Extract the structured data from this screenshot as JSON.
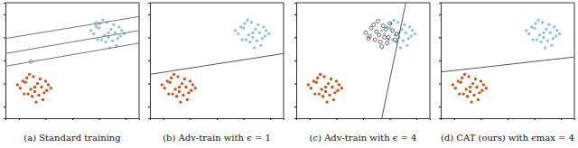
{
  "chart_data": [
    {
      "type": "scatter",
      "title": "(a) Standard training",
      "xlim": [
        -5,
        5
      ],
      "ylim": [
        -5,
        5
      ],
      "xticks": [
        -4,
        -2,
        0,
        2,
        4
      ],
      "yticks": [
        -4,
        -2,
        0,
        2,
        4
      ],
      "tick_labels": false,
      "series": [
        {
          "type": "scatter",
          "color": "#c4581f",
          "marker": "circle",
          "x": [
            -2.8,
            -3.5,
            -2.1,
            -3.0,
            -2.4,
            -3.9,
            -1.8,
            -2.9,
            -3.3,
            -2.2,
            -2.6,
            -3.7,
            -1.9,
            -3.1,
            -2.5,
            -3.4,
            -2.0,
            -2.7,
            -3.6,
            -2.3,
            -3.2,
            -1.6,
            -4.1,
            -2.8
          ],
          "values": [
            -2.3,
            -1.9,
            -2.8,
            -3.1,
            -1.6,
            -2.4,
            -2.1,
            -1.4,
            -2.9,
            -3.4,
            -2.0,
            -1.8,
            -2.6,
            -2.5,
            -3.0,
            -1.5,
            -1.8,
            -3.6,
            -2.9,
            -2.3,
            -1.2,
            -2.4,
            -2.1,
            -2.7
          ]
        },
        {
          "type": "scatter",
          "color": "#8ec3e6",
          "marker": "circle",
          "x": [
            2.7,
            2.0,
            3.4,
            2.5,
            3.1,
            1.6,
            3.7,
            2.6,
            2.2,
            3.3,
            2.9,
            1.8,
            3.6,
            2.4,
            3.0,
            2.1,
            3.5,
            2.8,
            1.9,
            3.2,
            2.3,
            3.9,
            1.4,
            2.7
          ],
          "values": [
            2.4,
            2.8,
            1.9,
            1.6,
            3.1,
            2.3,
            2.6,
            3.3,
            1.8,
            1.3,
            2.7,
            2.9,
            2.1,
            2.2,
            1.7,
            3.2,
            2.9,
            1.1,
            1.8,
            2.4,
            3.5,
            2.3,
            2.6,
            2.0
          ]
        },
        {
          "type": "scatter",
          "color": "#2e7d32",
          "marker": "circle-open",
          "x": [
            -3.1,
            1.8
          ],
          "values": [
            -0.1,
            3.2
          ]
        },
        {
          "type": "line",
          "color": "#666666",
          "line_style": "solid",
          "x": [
            -5,
            5
          ],
          "values": [
            1.9,
            3.8
          ]
        },
        {
          "type": "line",
          "color": "#666666",
          "line_style": "solid",
          "x": [
            -5,
            5
          ],
          "values": [
            0.6,
            2.6
          ]
        },
        {
          "type": "line",
          "color": "#666666",
          "line_style": "solid",
          "x": [
            -5,
            5
          ],
          "values": [
            -0.5,
            1.5
          ]
        }
      ]
    },
    {
      "type": "scatter",
      "title": "(b) Adv-train with ϵ = 1",
      "xlim": [
        -5,
        5
      ],
      "ylim": [
        -5,
        5
      ],
      "xticks": [
        -4,
        -2,
        0,
        2,
        4
      ],
      "yticks": [
        -4,
        -2,
        0,
        2,
        4
      ],
      "tick_labels": false,
      "series": [
        {
          "type": "scatter",
          "color": "#c4581f",
          "marker": "circle",
          "x": [
            -2.8,
            -3.5,
            -2.1,
            -3.0,
            -2.4,
            -3.9,
            -1.8,
            -2.9,
            -3.3,
            -2.2,
            -2.6,
            -3.7,
            -1.9,
            -3.1,
            -2.5,
            -3.4,
            -2.0,
            -2.7,
            -3.6,
            -2.3,
            -3.2,
            -1.6,
            -4.1,
            -2.8
          ],
          "values": [
            -2.3,
            -1.9,
            -2.8,
            -3.1,
            -1.6,
            -2.4,
            -2.1,
            -1.4,
            -2.9,
            -3.4,
            -2.0,
            -1.8,
            -2.6,
            -2.5,
            -3.0,
            -1.5,
            -1.8,
            -3.6,
            -2.9,
            -2.3,
            -1.2,
            -2.4,
            -2.1,
            -2.7
          ]
        },
        {
          "type": "scatter",
          "color": "#8ec3e6",
          "marker": "circle",
          "x": [
            2.7,
            2.0,
            3.4,
            2.5,
            3.1,
            1.6,
            3.7,
            2.6,
            2.2,
            3.3,
            2.9,
            1.8,
            3.6,
            2.4,
            3.0,
            2.1,
            3.5,
            2.8,
            1.9,
            3.2,
            2.3,
            3.9,
            1.4,
            2.7
          ],
          "values": [
            2.4,
            2.8,
            1.9,
            1.6,
            3.1,
            2.3,
            2.6,
            3.3,
            1.8,
            1.3,
            2.7,
            2.9,
            2.1,
            2.2,
            1.7,
            3.2,
            2.9,
            1.1,
            1.8,
            2.4,
            3.5,
            2.3,
            2.6,
            2.0
          ]
        },
        {
          "type": "line",
          "color": "#444444",
          "line_style": "solid",
          "x": [
            -5,
            5
          ],
          "values": [
            -1.2,
            0.6
          ]
        }
      ]
    },
    {
      "type": "scatter",
      "title": "(c) Adv-train with ϵ = 4",
      "xlim": [
        -5,
        5
      ],
      "ylim": [
        -5,
        5
      ],
      "xticks": [
        -4,
        -2,
        0,
        2,
        4
      ],
      "yticks": [
        -4,
        -2,
        0,
        2,
        4
      ],
      "tick_labels": false,
      "series": [
        {
          "type": "scatter",
          "color": "#c4581f",
          "marker": "circle",
          "x": [
            -2.8,
            -3.5,
            -2.1,
            -3.0,
            -2.4,
            -3.9,
            -1.8,
            -2.9,
            -3.3,
            -2.2,
            -2.6,
            -3.7,
            -1.9,
            -3.1,
            -2.5,
            -3.4,
            -2.0,
            -2.7,
            -3.6,
            -2.3,
            -3.2,
            -1.6,
            -4.1,
            -2.8
          ],
          "values": [
            -2.3,
            -1.9,
            -2.8,
            -3.1,
            -1.6,
            -2.4,
            -2.1,
            -1.4,
            -2.9,
            -3.4,
            -2.0,
            -1.8,
            -2.6,
            -2.5,
            -3.0,
            -1.5,
            -1.8,
            -3.6,
            -2.9,
            -2.3,
            -1.2,
            -2.4,
            -2.1,
            -2.7
          ]
        },
        {
          "type": "scatter",
          "color": "#8ec3e6",
          "marker": "circle",
          "x": [
            2.7,
            2.0,
            3.4,
            2.5,
            3.1,
            1.6,
            3.7,
            2.6,
            2.2,
            3.3,
            2.9,
            1.8,
            3.6,
            2.4,
            3.0,
            2.1,
            3.5,
            2.8,
            1.9,
            3.2,
            2.3,
            3.9,
            1.4,
            2.7
          ],
          "values": [
            2.4,
            2.8,
            1.9,
            1.6,
            3.1,
            2.3,
            2.6,
            3.3,
            1.8,
            1.3,
            2.7,
            2.9,
            2.1,
            2.2,
            1.7,
            3.2,
            2.9,
            1.1,
            1.8,
            2.4,
            3.5,
            2.3,
            2.6,
            2.0
          ]
        },
        {
          "type": "scatter",
          "color": "#111111",
          "marker": "circle-open",
          "x": [
            1.2,
            0.6,
            1.8,
            0.2,
            1.5,
            2.2,
            0.9,
            1.1,
            1.9,
            0.4,
            1.4,
            2.5,
            0.8,
            1.7,
            1.0,
            2.0,
            0.5,
            1.3,
            2.4,
            1.6
          ],
          "values": [
            2.2,
            2.8,
            1.5,
            2.4,
            3.0,
            2.6,
            1.8,
            3.4,
            2.0,
            1.9,
            1.2,
            2.3,
            3.1,
            2.7,
            2.5,
            3.2,
            2.1,
            1.6,
            1.8,
            2.0
          ]
        },
        {
          "type": "line",
          "color": "#444444",
          "line_style": "solid",
          "x": [
            3.2,
            1.4
          ],
          "values": [
            5,
            -5
          ]
        }
      ]
    },
    {
      "type": "scatter",
      "title": "(d) CAT (ours) with ϵmax = 4",
      "xlim": [
        -5,
        5
      ],
      "ylim": [
        -5,
        5
      ],
      "xticks": [
        -4,
        -2,
        0,
        2,
        4
      ],
      "yticks": [
        -4,
        -2,
        0,
        2,
        4
      ],
      "tick_labels": false,
      "series": [
        {
          "type": "scatter",
          "color": "#c4581f",
          "marker": "circle",
          "x": [
            -2.8,
            -3.5,
            -2.1,
            -3.0,
            -2.4,
            -3.9,
            -1.8,
            -2.9,
            -3.3,
            -2.2,
            -2.6,
            -3.7,
            -1.9,
            -3.1,
            -2.5,
            -3.4,
            -2.0,
            -2.7,
            -3.6,
            -2.3,
            -3.2,
            -1.6,
            -4.1,
            -2.8
          ],
          "values": [
            -2.3,
            -1.9,
            -2.8,
            -3.1,
            -1.6,
            -2.4,
            -2.1,
            -1.4,
            -2.9,
            -3.4,
            -2.0,
            -1.8,
            -2.6,
            -2.5,
            -3.0,
            -1.5,
            -1.8,
            -3.6,
            -2.9,
            -2.3,
            -1.2,
            -2.4,
            -2.1,
            -2.7
          ]
        },
        {
          "type": "scatter",
          "color": "#8ec3e6",
          "marker": "circle",
          "x": [
            2.7,
            2.0,
            3.4,
            2.5,
            3.1,
            1.6,
            3.7,
            2.6,
            2.2,
            3.3,
            2.9,
            1.8,
            3.6,
            2.4,
            3.0,
            2.1,
            3.5,
            2.8,
            1.9,
            3.2,
            2.3,
            3.9,
            1.4,
            2.7
          ],
          "values": [
            2.4,
            2.8,
            1.9,
            1.6,
            3.1,
            2.3,
            2.6,
            3.3,
            1.8,
            1.3,
            2.7,
            2.9,
            2.1,
            2.2,
            1.7,
            3.2,
            2.9,
            1.1,
            1.8,
            2.4,
            3.5,
            2.3,
            2.6,
            2.0
          ]
        },
        {
          "type": "line",
          "color": "#444444",
          "line_style": "solid",
          "x": [
            -5,
            5
          ],
          "values": [
            -1.0,
            0.3
          ]
        }
      ]
    }
  ]
}
